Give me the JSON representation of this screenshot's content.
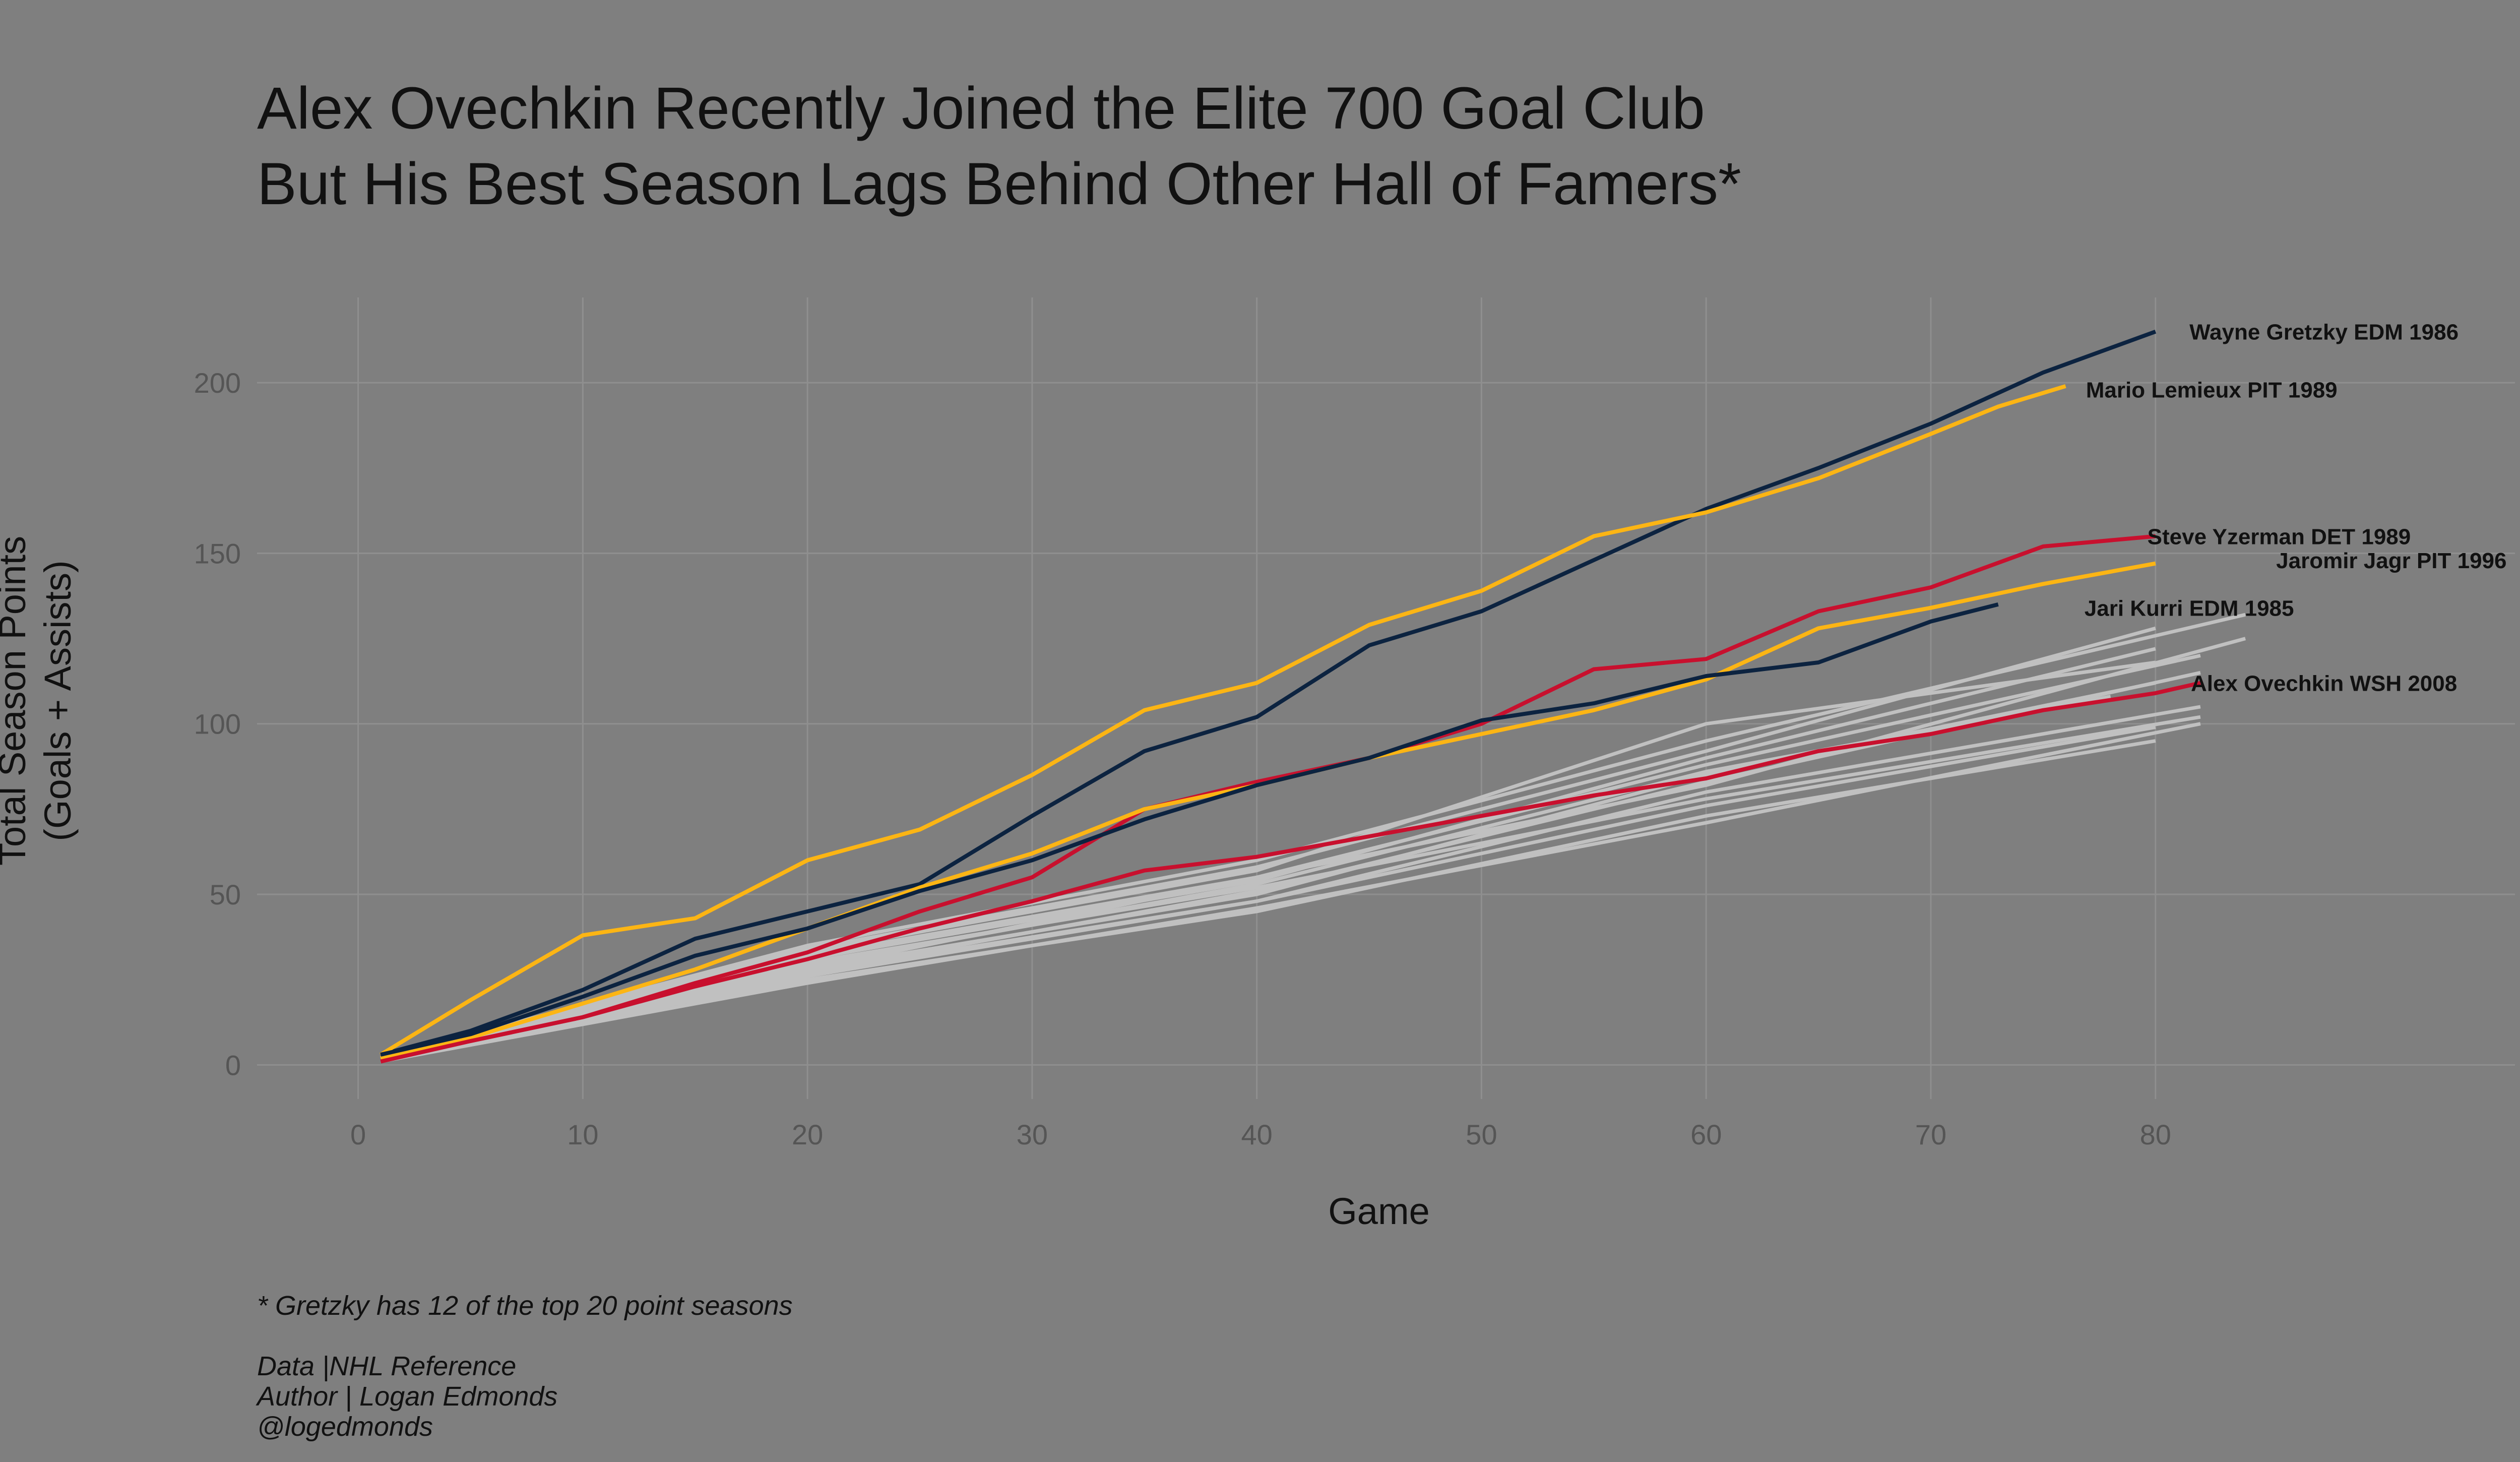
{
  "title_lines": [
    "Alex Ovechkin Recently Joined the Elite 700 Goal Club",
    "But His Best Season Lags Behind Other Hall of Famers*"
  ],
  "footnote": "* Gretzky has 12 of the top 20 point seasons",
  "credits": [
    "Data |NHL Reference",
    "Author | Logan Edmonds",
    "@logedmonds"
  ],
  "colors": {
    "background": "#7f7f7f",
    "grid": "#8f8f8f",
    "other_seasons": "#c0c0c0",
    "navy": "#0c2340",
    "gold": "#fcb514",
    "red": "#c8102e"
  },
  "chart_data": {
    "type": "line",
    "xlabel": "Game",
    "ylabel": [
      "Total Season Points",
      "(Goals + Assists)"
    ],
    "xlim": [
      -4.5,
      96
    ],
    "ylim": [
      -10,
      225
    ],
    "x_ticks": [
      0,
      10,
      20,
      30,
      40,
      50,
      60,
      70,
      80
    ],
    "y_ticks": [
      0,
      50,
      100,
      150,
      200
    ],
    "grid": true,
    "legend": "none",
    "series": [
      {
        "name": "Wayne Gretzky EDM 1986",
        "color": "navy",
        "label_pos": [
          87.5,
          215
        ],
        "x": [
          1,
          5,
          10,
          15,
          20,
          25,
          30,
          35,
          40,
          45,
          50,
          55,
          60,
          65,
          70,
          75,
          80
        ],
        "y": [
          3,
          10,
          22,
          37,
          45,
          53,
          73,
          92,
          102,
          123,
          133,
          148,
          163,
          175,
          188,
          203,
          215
        ]
      },
      {
        "name": "Mario Lemieux PIT 1989",
        "color": "gold",
        "label_pos": [
          82.5,
          198
        ],
        "x": [
          1,
          5,
          10,
          15,
          20,
          25,
          30,
          35,
          40,
          45,
          50,
          55,
          60,
          65,
          70,
          73,
          76
        ],
        "y": [
          3,
          19,
          38,
          43,
          60,
          69,
          85,
          104,
          112,
          129,
          139,
          155,
          162,
          172,
          185,
          193,
          199
        ]
      },
      {
        "name": "Steve Yzerman DET 1989",
        "color": "red",
        "label_pos": [
          85.5,
          155
        ],
        "x": [
          1,
          5,
          10,
          15,
          20,
          25,
          30,
          35,
          40,
          45,
          50,
          55,
          60,
          65,
          70,
          75,
          80
        ],
        "y": [
          2,
          7,
          14,
          24,
          33,
          45,
          55,
          75,
          83,
          90,
          100,
          116,
          119,
          133,
          140,
          152,
          155
        ]
      },
      {
        "name": "Jaromir Jagr PIT 1996",
        "color": "gold",
        "label_pos": [
          90.5,
          148
        ],
        "x": [
          1,
          5,
          10,
          15,
          20,
          25,
          30,
          35,
          40,
          45,
          50,
          55,
          60,
          65,
          70,
          75,
          80
        ],
        "y": [
          2,
          8,
          18,
          28,
          40,
          52,
          62,
          75,
          82,
          90,
          97,
          104,
          113,
          128,
          134,
          141,
          147
        ]
      },
      {
        "name": "Jari Kurri EDM 1985",
        "color": "navy",
        "label_pos": [
          81.5,
          134
        ],
        "x": [
          1,
          5,
          10,
          15,
          20,
          25,
          30,
          35,
          40,
          45,
          50,
          55,
          60,
          65,
          70,
          73
        ],
        "y": [
          3,
          9,
          20,
          32,
          40,
          51,
          60,
          72,
          82,
          90,
          101,
          106,
          114,
          118,
          130,
          135
        ]
      },
      {
        "name": "Alex Ovechkin WSH 2008",
        "color": "red",
        "label_pos": [
          87.5,
          112
        ],
        "x": [
          1,
          5,
          10,
          15,
          20,
          25,
          30,
          35,
          40,
          45,
          50,
          55,
          60,
          65,
          70,
          75,
          80,
          82
        ],
        "y": [
          1,
          7,
          14,
          23,
          31,
          40,
          48,
          57,
          61,
          67,
          73,
          79,
          84,
          92,
          97,
          104,
          109,
          112
        ]
      },
      {
        "color": "other_seasons",
        "x": [
          1,
          20,
          40,
          60,
          84
        ],
        "y": [
          2,
          35,
          60,
          95,
          132
        ]
      },
      {
        "color": "other_seasons",
        "x": [
          1,
          20,
          40,
          60,
          84
        ],
        "y": [
          2,
          28,
          55,
          82,
          125
        ]
      },
      {
        "color": "other_seasons",
        "x": [
          1,
          20,
          40,
          60,
          82
        ],
        "y": [
          1,
          24,
          46,
          71,
          100
        ]
      },
      {
        "color": "other_seasons",
        "x": [
          1,
          20,
          40,
          60,
          82
        ],
        "y": [
          2,
          30,
          52,
          78,
          102
        ]
      },
      {
        "color": "other_seasons",
        "x": [
          1,
          20,
          40,
          60,
          80
        ],
        "y": [
          2,
          34,
          58,
          92,
          128
        ]
      },
      {
        "color": "other_seasons",
        "x": [
          1,
          20,
          40,
          60,
          80
        ],
        "y": [
          1,
          26,
          48,
          76,
          99
        ]
      },
      {
        "color": "other_seasons",
        "x": [
          1,
          20,
          40,
          60,
          82
        ],
        "y": [
          2,
          32,
          55,
          88,
          120
        ]
      },
      {
        "color": "other_seasons",
        "x": [
          1,
          20,
          40,
          60,
          80
        ],
        "y": [
          1,
          28,
          50,
          85,
          112
        ]
      },
      {
        "color": "other_seasons",
        "x": [
          1,
          20,
          40,
          60,
          82
        ],
        "y": [
          2,
          27,
          48,
          80,
          105
        ]
      },
      {
        "color": "other_seasons",
        "x": [
          1,
          20,
          40,
          60,
          80
        ],
        "y": [
          1,
          33,
          57,
          100,
          118
        ]
      },
      {
        "color": "other_seasons",
        "x": [
          1,
          20,
          40,
          60,
          80
        ],
        "y": [
          2,
          25,
          45,
          73,
          95
        ]
      },
      {
        "color": "other_seasons",
        "x": [
          1,
          20,
          40,
          60,
          78
        ],
        "y": [
          1,
          29,
          53,
          86,
          108
        ]
      },
      {
        "color": "other_seasons",
        "x": [
          1,
          20,
          40,
          60,
          80
        ],
        "y": [
          2,
          31,
          54,
          90,
          122
        ]
      },
      {
        "color": "other_seasons",
        "x": [
          1,
          20,
          40,
          60,
          82
        ],
        "y": [
          1,
          27,
          51,
          83,
          115
        ]
      }
    ]
  }
}
